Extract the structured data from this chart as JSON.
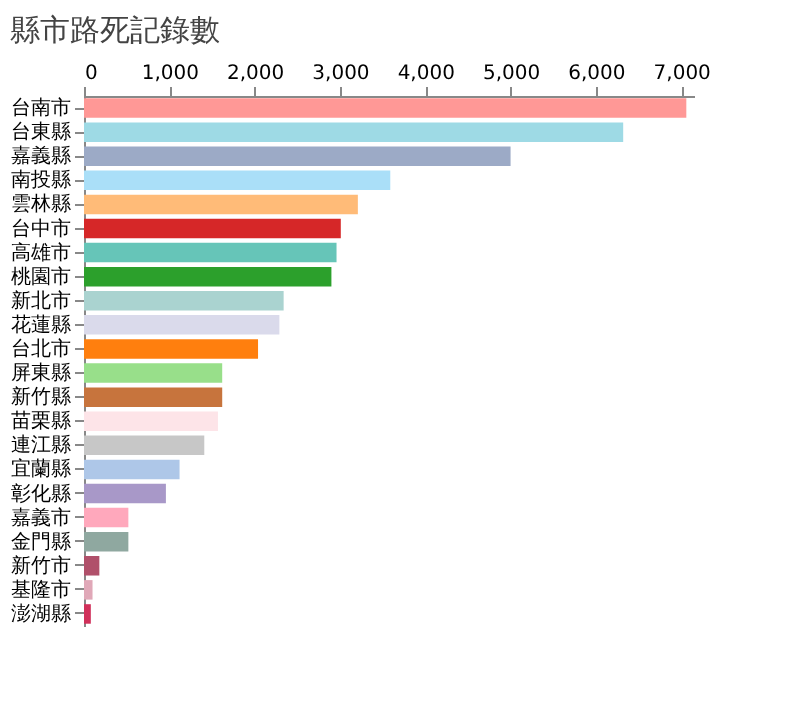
{
  "chart_data": {
    "type": "bar",
    "orientation": "horizontal",
    "title": "縣市路死記錄數",
    "categories": [
      "台南市",
      "台東縣",
      "嘉義縣",
      "南投縣",
      "雲林縣",
      "台中市",
      "高雄市",
      "桃園市",
      "新北市",
      "花蓮縣",
      "台北市",
      "屏東縣",
      "新竹縣",
      "苗栗縣",
      "連江縣",
      "宜蘭縣",
      "彰化縣",
      "嘉義市",
      "金門縣",
      "新竹市",
      "基隆市",
      "澎湖縣"
    ],
    "values": [
      7060,
      6320,
      5000,
      3590,
      3210,
      3010,
      2960,
      2900,
      2340,
      2290,
      2040,
      1620,
      1620,
      1570,
      1410,
      1120,
      960,
      520,
      520,
      180,
      100,
      80
    ],
    "colors": [
      "#ff9896",
      "#9edae5",
      "#9caac6",
      "#aadff8",
      "#ffbb78",
      "#d62728",
      "#66c5b8",
      "#2ca02c",
      "#aad3d0",
      "#dadaeb",
      "#ff7f0e",
      "#98df8a",
      "#c7743d",
      "#fde4e8",
      "#c7c7c7",
      "#aec7e8",
      "#a898c8",
      "#ffa8bc",
      "#8fa8a0",
      "#b0506a",
      "#e0a8b8",
      "#d0305a"
    ],
    "xlim": [
      0,
      7150
    ],
    "xticks": [
      0,
      {
        "value": 1000,
        "label": "1,000"
      },
      {
        "value": 2000,
        "label": "2,000"
      },
      {
        "value": 3000,
        "label": "3,000"
      },
      {
        "value": 4000,
        "label": "4,000"
      },
      {
        "value": 5000,
        "label": "5,000"
      },
      {
        "value": 6000,
        "label": "6,000"
      },
      {
        "value": 7000,
        "label": "7,000"
      }
    ],
    "grid": false
  }
}
